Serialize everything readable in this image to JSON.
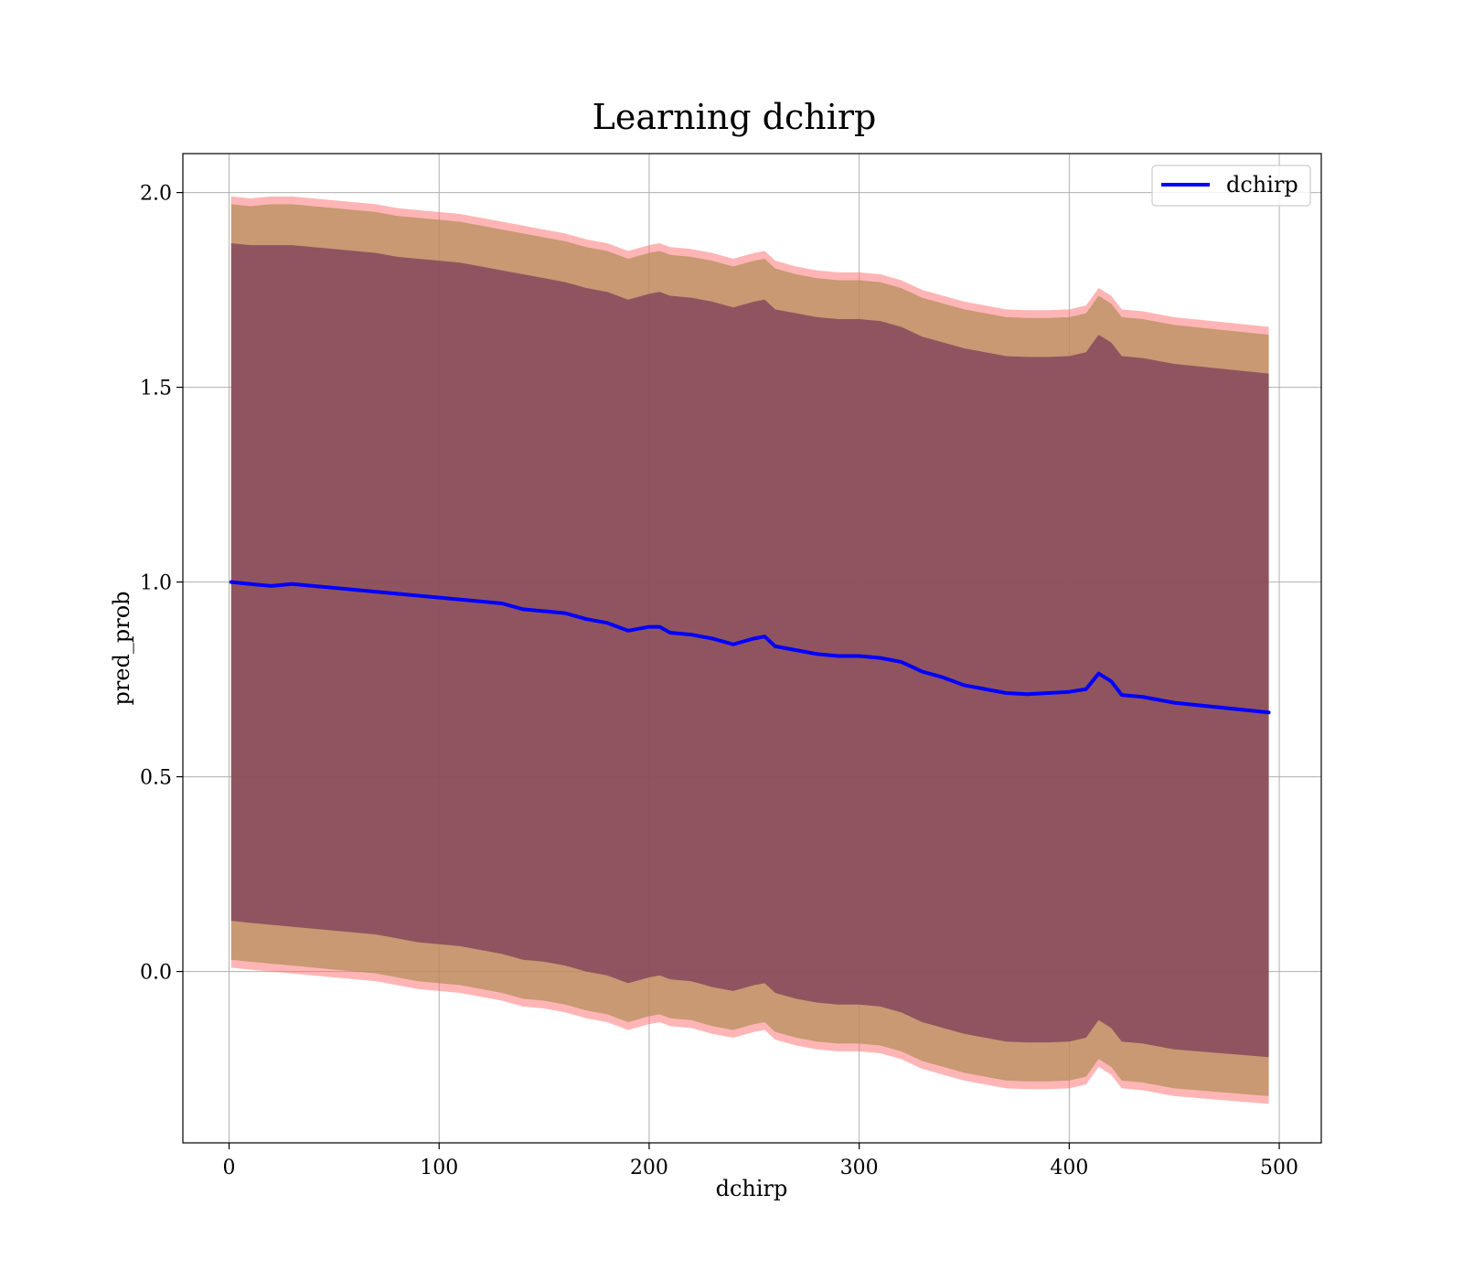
{
  "chart_data": {
    "type": "line",
    "title": "Learning dchirp",
    "xlabel": "dchirp",
    "ylabel": "pred_prob",
    "xlim": [
      -22,
      520
    ],
    "ylim": [
      -0.44,
      2.1
    ],
    "xticks": [
      0,
      100,
      200,
      300,
      400,
      500
    ],
    "xtick_labels": [
      "0",
      "100",
      "200",
      "300",
      "400",
      "500"
    ],
    "yticks": [
      0.0,
      0.5,
      1.0,
      1.5,
      2.0
    ],
    "ytick_labels": [
      "0.0",
      "0.5",
      "1.0",
      "1.5",
      "2.0"
    ],
    "grid": true,
    "legend_position": "top-right",
    "colors": {
      "line": "#0000ff",
      "outer_band": "#ff6b6b",
      "middle_band": "#b08d57",
      "inner_band": "#7d3d5a",
      "grid": "#b0b0b0"
    },
    "x": [
      1,
      10,
      20,
      30,
      40,
      50,
      60,
      70,
      80,
      90,
      100,
      110,
      120,
      130,
      140,
      150,
      160,
      170,
      180,
      190,
      200,
      205,
      210,
      220,
      230,
      240,
      250,
      255,
      260,
      270,
      280,
      290,
      300,
      310,
      320,
      330,
      340,
      350,
      360,
      370,
      380,
      390,
      400,
      408,
      414,
      420,
      425,
      435,
      450,
      495
    ],
    "series": [
      {
        "name": "dchirp",
        "values": [
          1.0,
          0.995,
          0.99,
          0.995,
          0.99,
          0.985,
          0.98,
          0.975,
          0.97,
          0.965,
          0.96,
          0.955,
          0.95,
          0.945,
          0.93,
          0.925,
          0.92,
          0.905,
          0.895,
          0.875,
          0.885,
          0.885,
          0.87,
          0.865,
          0.855,
          0.84,
          0.855,
          0.86,
          0.835,
          0.825,
          0.815,
          0.81,
          0.81,
          0.805,
          0.795,
          0.77,
          0.755,
          0.735,
          0.725,
          0.715,
          0.712,
          0.715,
          0.718,
          0.725,
          0.765,
          0.745,
          0.71,
          0.705,
          0.69,
          0.665
        ]
      }
    ],
    "bands": [
      {
        "upper": [
          1.99,
          1.985,
          1.99,
          1.99,
          1.985,
          1.98,
          1.975,
          1.97,
          1.96,
          1.955,
          1.95,
          1.945,
          1.935,
          1.925,
          1.915,
          1.905,
          1.895,
          1.88,
          1.87,
          1.85,
          1.865,
          1.87,
          1.86,
          1.855,
          1.845,
          1.83,
          1.845,
          1.85,
          1.825,
          1.81,
          1.8,
          1.795,
          1.795,
          1.79,
          1.775,
          1.75,
          1.735,
          1.72,
          1.71,
          1.7,
          1.698,
          1.698,
          1.7,
          1.71,
          1.755,
          1.735,
          1.7,
          1.695,
          1.68,
          1.655
        ],
        "lower": [
          0.01,
          0.005,
          0.0,
          -0.005,
          -0.01,
          -0.015,
          -0.02,
          -0.025,
          -0.035,
          -0.045,
          -0.05,
          -0.055,
          -0.065,
          -0.075,
          -0.09,
          -0.095,
          -0.105,
          -0.12,
          -0.13,
          -0.15,
          -0.135,
          -0.13,
          -0.14,
          -0.145,
          -0.16,
          -0.17,
          -0.155,
          -0.15,
          -0.175,
          -0.19,
          -0.2,
          -0.205,
          -0.205,
          -0.21,
          -0.225,
          -0.25,
          -0.265,
          -0.28,
          -0.29,
          -0.3,
          -0.302,
          -0.302,
          -0.3,
          -0.29,
          -0.245,
          -0.265,
          -0.3,
          -0.305,
          -0.32,
          -0.34
        ]
      },
      {
        "upper": [
          1.97,
          1.965,
          1.97,
          1.97,
          1.965,
          1.96,
          1.955,
          1.95,
          1.94,
          1.935,
          1.93,
          1.925,
          1.915,
          1.905,
          1.895,
          1.885,
          1.875,
          1.86,
          1.85,
          1.83,
          1.845,
          1.85,
          1.84,
          1.835,
          1.825,
          1.81,
          1.825,
          1.83,
          1.805,
          1.79,
          1.78,
          1.775,
          1.775,
          1.77,
          1.755,
          1.73,
          1.715,
          1.7,
          1.69,
          1.68,
          1.678,
          1.678,
          1.68,
          1.69,
          1.735,
          1.715,
          1.68,
          1.675,
          1.66,
          1.635
        ],
        "lower": [
          0.03,
          0.025,
          0.02,
          0.015,
          0.01,
          0.005,
          0.0,
          -0.005,
          -0.015,
          -0.025,
          -0.03,
          -0.035,
          -0.045,
          -0.055,
          -0.07,
          -0.075,
          -0.085,
          -0.1,
          -0.11,
          -0.13,
          -0.115,
          -0.11,
          -0.12,
          -0.125,
          -0.14,
          -0.15,
          -0.135,
          -0.13,
          -0.155,
          -0.17,
          -0.18,
          -0.185,
          -0.185,
          -0.19,
          -0.205,
          -0.23,
          -0.245,
          -0.26,
          -0.27,
          -0.28,
          -0.282,
          -0.282,
          -0.28,
          -0.27,
          -0.225,
          -0.245,
          -0.28,
          -0.285,
          -0.3,
          -0.32
        ]
      },
      {
        "upper": [
          1.87,
          1.865,
          1.865,
          1.865,
          1.86,
          1.855,
          1.85,
          1.845,
          1.835,
          1.83,
          1.825,
          1.82,
          1.81,
          1.8,
          1.79,
          1.78,
          1.77,
          1.755,
          1.745,
          1.725,
          1.74,
          1.745,
          1.735,
          1.73,
          1.72,
          1.705,
          1.72,
          1.725,
          1.7,
          1.69,
          1.68,
          1.675,
          1.675,
          1.67,
          1.655,
          1.63,
          1.615,
          1.6,
          1.59,
          1.58,
          1.578,
          1.578,
          1.58,
          1.59,
          1.635,
          1.615,
          1.58,
          1.575,
          1.56,
          1.535
        ],
        "lower": [
          0.13,
          0.125,
          0.12,
          0.115,
          0.11,
          0.105,
          0.1,
          0.095,
          0.085,
          0.075,
          0.07,
          0.065,
          0.055,
          0.045,
          0.03,
          0.025,
          0.015,
          0.0,
          -0.01,
          -0.03,
          -0.015,
          -0.01,
          -0.02,
          -0.025,
          -0.04,
          -0.05,
          -0.035,
          -0.03,
          -0.055,
          -0.07,
          -0.08,
          -0.085,
          -0.085,
          -0.09,
          -0.105,
          -0.13,
          -0.145,
          -0.16,
          -0.17,
          -0.18,
          -0.182,
          -0.182,
          -0.18,
          -0.17,
          -0.125,
          -0.145,
          -0.18,
          -0.185,
          -0.2,
          -0.22
        ]
      }
    ]
  }
}
